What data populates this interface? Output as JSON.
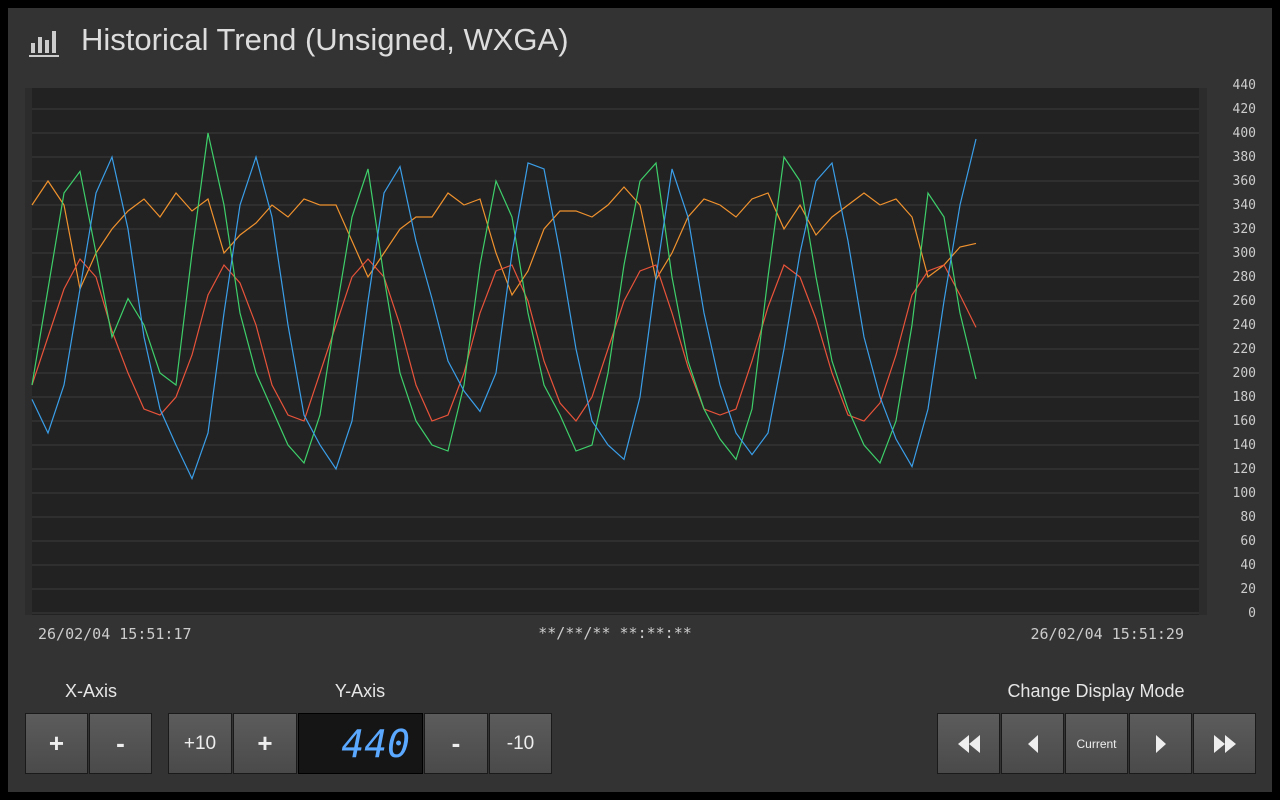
{
  "header": {
    "title": "Historical Trend (Unsigned, WXGA)"
  },
  "chart_data": {
    "type": "line",
    "ylim": [
      0,
      440
    ],
    "yticks": [
      0,
      20,
      40,
      60,
      80,
      100,
      120,
      140,
      160,
      180,
      200,
      220,
      240,
      260,
      280,
      300,
      320,
      340,
      360,
      380,
      400,
      420,
      440
    ],
    "grid": true,
    "x_start_label": "26/02/04 15:51:17",
    "x_cursor_label": "**/**/** **:**:**",
    "x_end_label": "26/02/04 15:51:29",
    "series": [
      {
        "color": "#f0922e",
        "values": [
          340,
          360,
          340,
          270,
          300,
          320,
          335,
          345,
          330,
          350,
          335,
          345,
          300,
          315,
          325,
          340,
          330,
          345,
          340,
          340,
          310,
          280,
          300,
          320,
          330,
          330,
          350,
          340,
          345,
          300,
          265,
          285,
          320,
          335,
          335,
          330,
          340,
          355,
          340,
          278,
          300,
          330,
          345,
          340,
          330,
          345,
          350,
          320,
          340,
          315,
          330,
          340,
          350,
          340,
          345,
          330,
          280,
          290,
          305,
          308,
          null,
          null,
          null,
          null,
          null,
          null,
          null,
          null,
          null,
          null,
          null,
          null,
          null,
          null
        ]
      },
      {
        "color": "#e8533a",
        "values": [
          190,
          230,
          270,
          295,
          280,
          235,
          200,
          170,
          165,
          180,
          215,
          265,
          290,
          275,
          240,
          190,
          165,
          160,
          200,
          240,
          280,
          295,
          280,
          240,
          190,
          160,
          165,
          200,
          250,
          285,
          290,
          260,
          210,
          175,
          160,
          180,
          220,
          260,
          285,
          290,
          250,
          205,
          170,
          165,
          170,
          210,
          255,
          290,
          280,
          245,
          200,
          165,
          160,
          175,
          215,
          265,
          285,
          290,
          265,
          238,
          null,
          null,
          null,
          null,
          null,
          null,
          null,
          null,
          null,
          null,
          null,
          null,
          null,
          null
        ]
      },
      {
        "color": "#3ecf6a",
        "values": [
          190,
          270,
          350,
          368,
          300,
          230,
          262,
          240,
          200,
          190,
          300,
          400,
          340,
          250,
          200,
          170,
          140,
          125,
          165,
          250,
          330,
          370,
          280,
          200,
          160,
          140,
          135,
          190,
          290,
          360,
          330,
          250,
          190,
          165,
          135,
          140,
          200,
          290,
          360,
          375,
          280,
          210,
          170,
          145,
          128,
          170,
          280,
          380,
          360,
          280,
          210,
          170,
          140,
          125,
          160,
          240,
          350,
          330,
          250,
          195,
          null,
          null,
          null,
          null,
          null,
          null,
          null,
          null,
          null,
          null,
          null,
          null,
          null,
          null
        ]
      },
      {
        "color": "#3a9ee8",
        "values": [
          178,
          150,
          190,
          270,
          350,
          380,
          320,
          230,
          170,
          140,
          112,
          150,
          250,
          340,
          380,
          330,
          240,
          165,
          140,
          120,
          160,
          260,
          350,
          372,
          310,
          262,
          210,
          185,
          168,
          200,
          300,
          375,
          370,
          300,
          220,
          160,
          140,
          128,
          180,
          280,
          370,
          330,
          250,
          190,
          150,
          132,
          150,
          220,
          300,
          360,
          375,
          310,
          230,
          180,
          145,
          122,
          170,
          260,
          340,
          395,
          null,
          null,
          null,
          null,
          null,
          null,
          null,
          null,
          null,
          null,
          null,
          null,
          null,
          null
        ]
      }
    ]
  },
  "controls": {
    "x_axis": {
      "label": "X-Axis",
      "buttons": [
        "+",
        "-"
      ]
    },
    "y_axis": {
      "label": "Y-Axis",
      "buttons": [
        "+10",
        "+",
        "-",
        "-10"
      ],
      "display": "440"
    },
    "display_mode": {
      "label": "Change Display Mode",
      "current": "Current"
    }
  }
}
